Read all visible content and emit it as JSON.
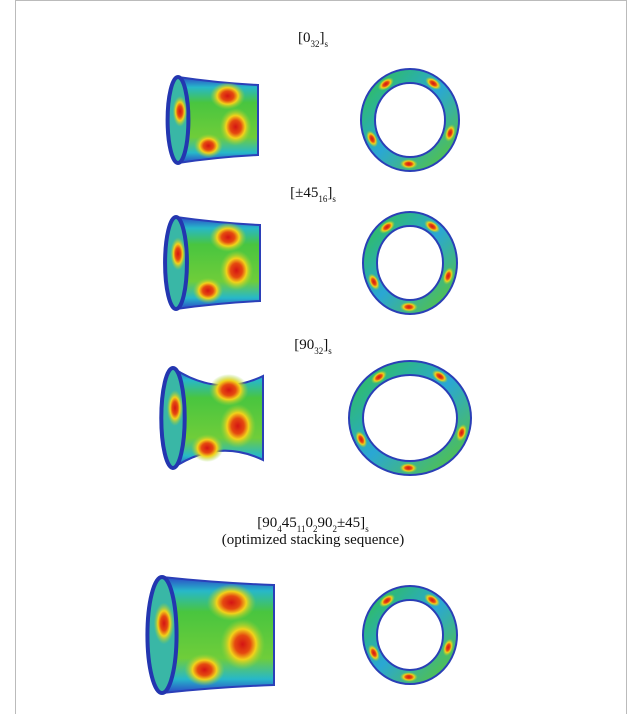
{
  "panels": [
    {
      "label": [
        [
          {
            "t": "[0"
          },
          {
            "t": "32",
            "sub": true
          },
          {
            "t": "]"
          },
          {
            "t": "s",
            "sub": true
          }
        ]
      ]
    },
    {
      "label": [
        [
          {
            "t": "[±45"
          },
          {
            "t": "16",
            "sub": true
          },
          {
            "t": "]"
          },
          {
            "t": "s",
            "sub": true
          }
        ]
      ]
    },
    {
      "label": [
        [
          {
            "t": "[90"
          },
          {
            "t": "32",
            "sub": true
          },
          {
            "t": "]"
          },
          {
            "t": "s",
            "sub": true
          }
        ]
      ]
    },
    {
      "label": [
        [
          {
            "t": "[90"
          },
          {
            "t": "4",
            "sub": true
          },
          {
            "t": "45"
          },
          {
            "t": "11",
            "sub": true
          },
          {
            "t": "0"
          },
          {
            "t": "2",
            "sub": true
          },
          {
            "t": "90"
          },
          {
            "t": "2",
            "sub": true
          },
          {
            "t": "±45]"
          },
          {
            "t": "s",
            "sub": true
          }
        ],
        [
          {
            "t": "(optimized stacking sequence)"
          }
        ]
      ]
    }
  ]
}
